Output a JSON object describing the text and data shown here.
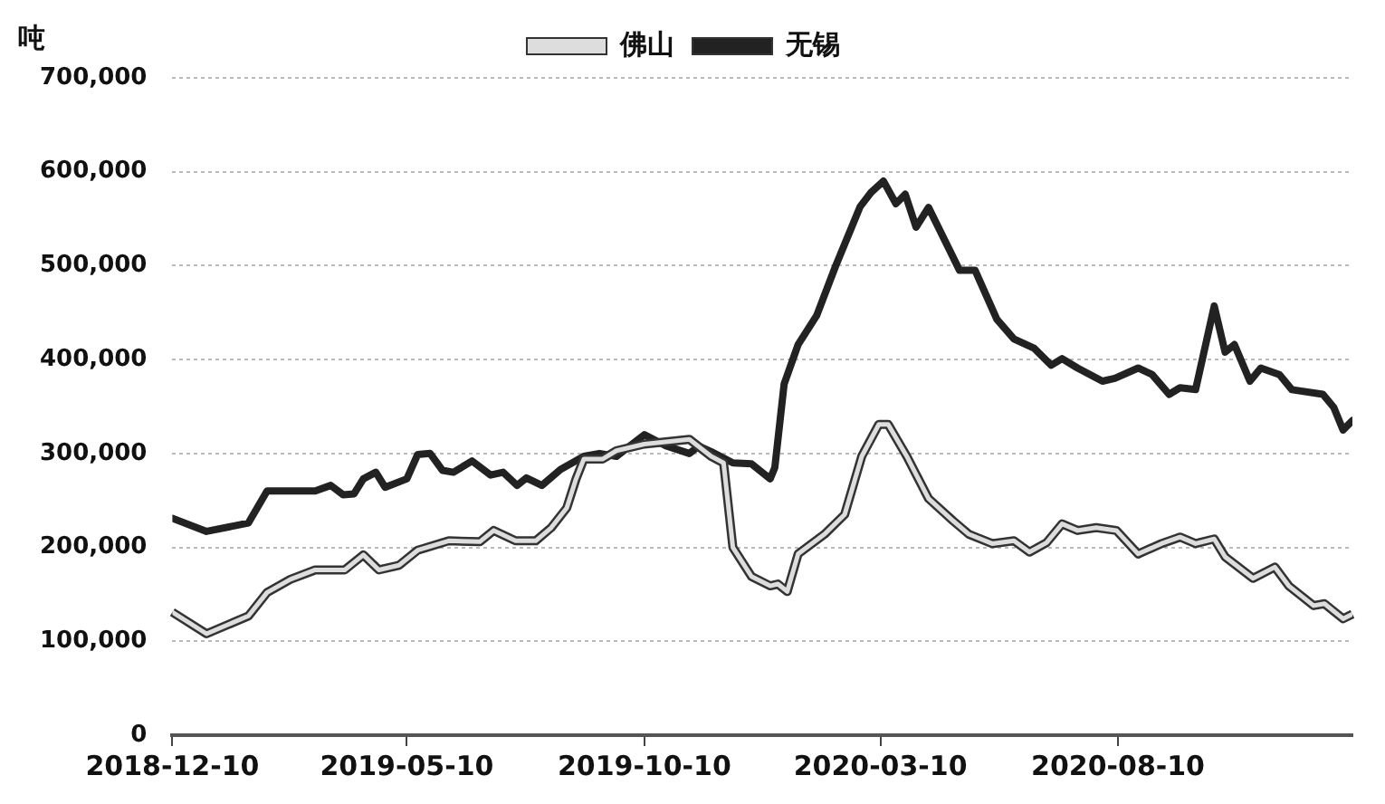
{
  "chart_data": {
    "type": "line",
    "ylabel": "吨",
    "xlim": [
      "2018-12-10",
      "2021-01-08"
    ],
    "xticks": [
      "2018-12-10",
      "2019-05-10",
      "2019-10-10",
      "2020-03-10",
      "2020-08-10"
    ],
    "ylim": [
      0,
      700000
    ],
    "yticks": [
      0,
      {
        "value": 100000,
        "label": "100,000"
      },
      {
        "value": 200000,
        "label": "200,000"
      },
      {
        "value": 300000,
        "label": "300,000"
      },
      {
        "value": 400000,
        "label": "400,000"
      },
      {
        "value": 500000,
        "label": "500,000"
      },
      {
        "value": 600000,
        "label": "600,000"
      },
      {
        "value": 700000,
        "label": "700,000"
      }
    ],
    "grid": "y",
    "legend": "top",
    "marker": "none",
    "line_style": "solid",
    "series": [
      {
        "name": "佛山",
        "color": "#dddddd",
        "x": [
          "2018-12-10",
          "2019-01-01",
          "2019-01-28",
          "2019-02-09",
          "2019-02-24",
          "2019-03-12",
          "2019-03-31",
          "2019-04-12",
          "2019-04-22",
          "2019-05-05",
          "2019-05-17",
          "2019-06-06",
          "2019-06-26",
          "2019-07-05",
          "2019-07-19",
          "2019-08-01",
          "2019-08-11",
          "2019-08-21",
          "2019-08-27",
          "2019-09-01",
          "2019-09-13",
          "2019-09-22",
          "2019-10-10",
          "2019-11-08",
          "2019-11-22",
          "2019-11-30",
          "2019-12-06",
          "2019-12-18",
          "2019-12-30",
          "2020-01-04",
          "2020-01-10",
          "2020-01-17",
          "2020-02-03",
          "2020-02-16",
          "2020-02-27",
          "2020-03-09",
          "2020-03-15",
          "2020-03-27",
          "2020-04-10",
          "2020-04-26",
          "2020-05-06",
          "2020-05-21",
          "2020-06-04",
          "2020-06-14",
          "2020-06-25",
          "2020-07-05",
          "2020-07-15",
          "2020-07-27",
          "2020-08-09",
          "2020-08-23",
          "2020-09-07",
          "2020-09-19",
          "2020-09-29",
          "2020-10-11",
          "2020-10-18",
          "2020-11-05",
          "2020-11-19",
          "2020-11-28",
          "2020-12-14",
          "2020-12-21",
          "2021-01-02",
          "2021-01-08"
        ],
        "values": [
          131000,
          108000,
          127000,
          152000,
          166000,
          176000,
          176000,
          192000,
          176000,
          181000,
          197000,
          207000,
          206000,
          218000,
          207000,
          207000,
          221000,
          242000,
          273000,
          294000,
          294000,
          303000,
          310000,
          315000,
          297000,
          290000,
          200000,
          169000,
          159000,
          161000,
          153000,
          193000,
          214000,
          235000,
          297000,
          331000,
          331000,
          297000,
          252000,
          228000,
          214000,
          204000,
          207000,
          195000,
          205000,
          225000,
          218000,
          221000,
          218000,
          193000,
          204000,
          211000,
          204000,
          209000,
          190000,
          167000,
          179000,
          159000,
          138000,
          140000,
          124000,
          129000
        ]
      },
      {
        "name": "无锡",
        "color": "#222222",
        "x": [
          "2018-12-10",
          "2019-01-01",
          "2019-01-28",
          "2019-02-09",
          "2019-03-12",
          "2019-03-22",
          "2019-03-30",
          "2019-04-06",
          "2019-04-12",
          "2019-04-20",
          "2019-04-26",
          "2019-05-10",
          "2019-05-17",
          "2019-05-25",
          "2019-06-02",
          "2019-06-09",
          "2019-06-21",
          "2019-07-03",
          "2019-07-11",
          "2019-07-20",
          "2019-07-26",
          "2019-08-05",
          "2019-08-17",
          "2019-09-01",
          "2019-09-11",
          "2019-09-22",
          "2019-10-10",
          "2019-10-24",
          "2019-11-08",
          "2019-11-14",
          "2019-11-22",
          "2019-12-06",
          "2019-12-18",
          "2019-12-30",
          "2020-01-02",
          "2020-01-08",
          "2020-01-17",
          "2020-01-29",
          "2020-02-10",
          "2020-02-26",
          "2020-03-04",
          "2020-03-12",
          "2020-03-20",
          "2020-03-26",
          "2020-04-02",
          "2020-04-10",
          "2020-04-30",
          "2020-05-10",
          "2020-05-24",
          "2020-06-04",
          "2020-06-17",
          "2020-06-28",
          "2020-07-05",
          "2020-07-15",
          "2020-07-31",
          "2020-08-08",
          "2020-08-23",
          "2020-09-01",
          "2020-09-12",
          "2020-09-19",
          "2020-09-29",
          "2020-10-11",
          "2020-10-18",
          "2020-10-24",
          "2020-11-03",
          "2020-11-10",
          "2020-11-22",
          "2020-11-30",
          "2020-12-20",
          "2020-12-27",
          "2021-01-02",
          "2021-01-08"
        ],
        "values": [
          231000,
          217000,
          226000,
          260000,
          260000,
          266000,
          256000,
          257000,
          273000,
          280000,
          264000,
          273000,
          299000,
          300000,
          282000,
          280000,
          292000,
          277000,
          280000,
          266000,
          274000,
          266000,
          283000,
          297000,
          300000,
          297000,
          320000,
          308000,
          300000,
          308000,
          302000,
          290000,
          289000,
          273000,
          285000,
          374000,
          416000,
          447000,
          499000,
          563000,
          578000,
          590000,
          566000,
          576000,
          541000,
          562000,
          495000,
          495000,
          443000,
          422000,
          412000,
          394000,
          401000,
          391000,
          377000,
          380000,
          391000,
          384000,
          363000,
          370000,
          368000,
          457000,
          408000,
          416000,
          377000,
          391000,
          384000,
          368000,
          363000,
          349000,
          325000,
          335000
        ]
      }
    ]
  }
}
